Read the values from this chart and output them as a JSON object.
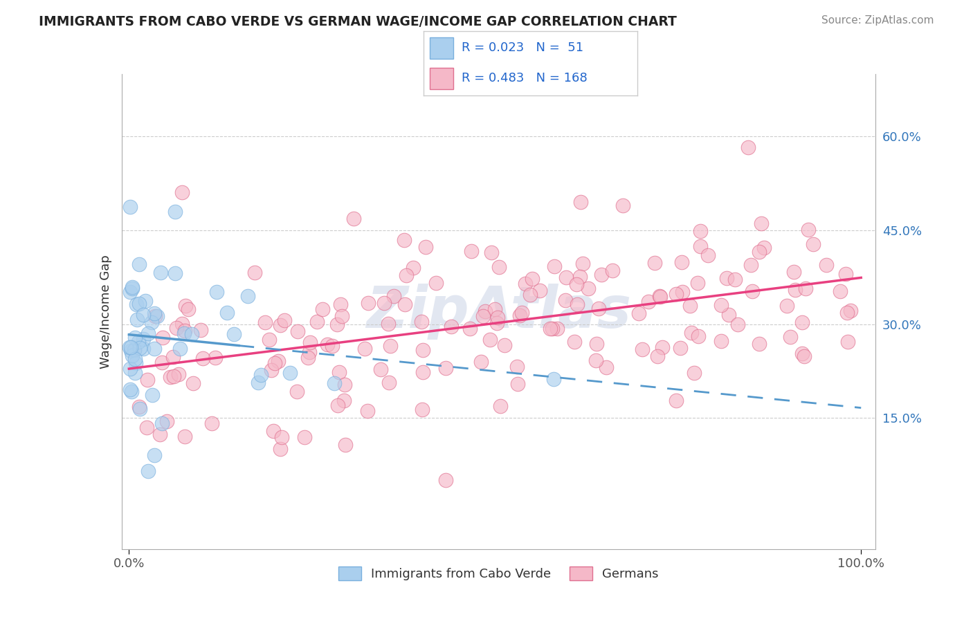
{
  "title": "IMMIGRANTS FROM CABO VERDE VS GERMAN WAGE/INCOME GAP CORRELATION CHART",
  "source": "Source: ZipAtlas.com",
  "ylabel": "Wage/Income Gap",
  "xlabel": "",
  "y_ticks": [
    0.15,
    0.3,
    0.45,
    0.6
  ],
  "y_tick_labels": [
    "15.0%",
    "30.0%",
    "45.0%",
    "60.0%"
  ],
  "xlim": [
    -0.01,
    1.02
  ],
  "ylim": [
    -0.06,
    0.7
  ],
  "cabo_verde_color": "#aacfee",
  "cabo_verde_edge": "#7ab0de",
  "german_color": "#f5b8c8",
  "german_edge": "#e07090",
  "cabo_verde_R": 0.023,
  "cabo_verde_N": 51,
  "german_R": 0.483,
  "german_N": 168,
  "trend_blue": "#5599cc",
  "trend_pink": "#e84080",
  "legend_label1": "Immigrants from Cabo Verde",
  "legend_label2": "Germans",
  "watermark": "ZipAtlas",
  "cabo_verde_seed": 77,
  "german_seed": 55
}
